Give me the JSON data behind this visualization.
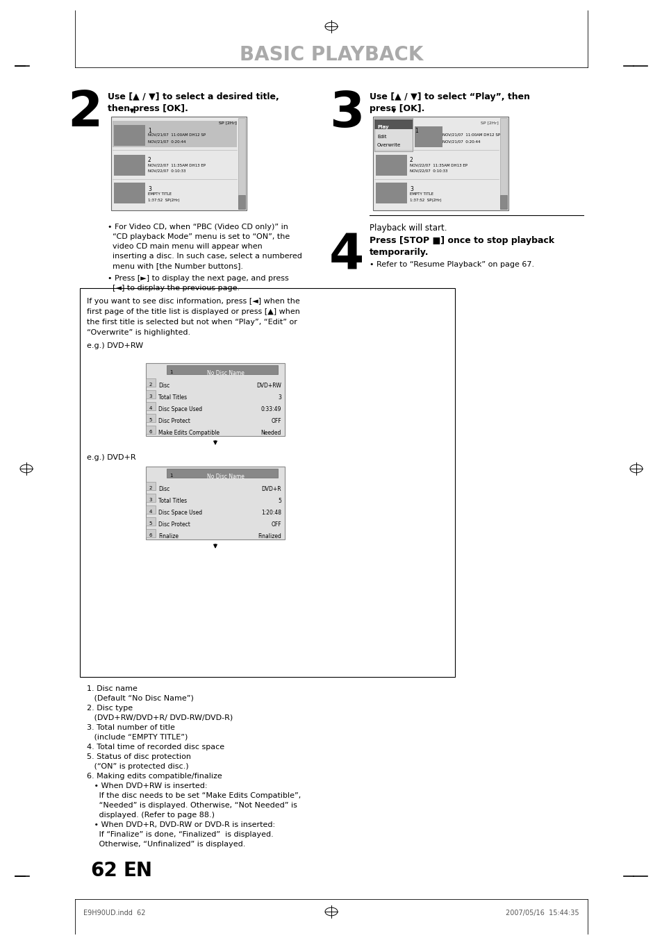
{
  "bg_color": "#ffffff",
  "title": "BASIC PLAYBACK",
  "title_color": "#aaaaaa",
  "page_number": "62",
  "page_label": "EN",
  "footer_left": "E9H90UD.indd  62",
  "footer_right": "2007/05/16  15:44:35",
  "step2_line1": "Use [▲ / ▼] to select a desired title,",
  "step2_line2": "then press [OK].",
  "step3_line1": "Use [▲ / ▼] to select “Play”, then",
  "step3_line2": "press [OK].",
  "step3_sub": "Playback will start.",
  "step4_line1": "Press [STOP ■] once to stop playback",
  "step4_line2": "temporarily.",
  "step4_sub": "• Refer to “Resume Playback” on page 67.",
  "bullet1_lines": [
    "• For Video CD, when “PBC (Video CD only)” in",
    "  “CD playback Mode” menu is set to “ON”, the",
    "  video CD main menu will appear when",
    "  inserting a disc. In such case, select a numbered",
    "  menu with [the Number buttons]."
  ],
  "bullet2_lines": [
    "• Press [►] to display the next page, and press",
    "  [◄] to display the previous page."
  ],
  "info_lines": [
    "If you want to see disc information, press [◄] when the",
    "first page of the title list is displayed or press [▲] when",
    "the first title is selected but not when “Play”, “Edit” or",
    "“Overwrite” is highlighted."
  ],
  "eg_dvdrw": "e.g.) DVD+RW",
  "eg_dvdr": "e.g.) DVD+R",
  "dvdrw_rows": [
    [
      "2",
      "Disc",
      "DVD+RW"
    ],
    [
      "3",
      "Total Titles",
      "3"
    ],
    [
      "4",
      "Disc Space Used",
      "0:33:49"
    ],
    [
      "5",
      "Disc Protect",
      "OFF"
    ],
    [
      "6",
      "Make Edits Compatible",
      "Needed"
    ]
  ],
  "dvdr_rows": [
    [
      "2",
      "Disc",
      "DVD+R"
    ],
    [
      "3",
      "Total Titles",
      "5"
    ],
    [
      "4",
      "Disc Space Used",
      "1:20:48"
    ],
    [
      "5",
      "Disc Protect",
      "OFF"
    ],
    [
      "6",
      "Finalize",
      "Finalized"
    ]
  ],
  "list_lines": [
    "1. Disc name",
    "   (Default “No Disc Name”)",
    "2. Disc type",
    "   (DVD+RW/DVD+R/ DVD-RW/DVD-R)",
    "3. Total number of title",
    "   (include “EMPTY TITLE”)",
    "4. Total time of recorded disc space",
    "5. Status of disc protection",
    "   (“ON” is protected disc.)",
    "6. Making edits compatible/finalize",
    "   • When DVD+RW is inserted:",
    "     If the disc needs to be set “Make Edits Compatible”,",
    "     “Needed” is displayed. Otherwise, “Not Needed” is",
    "     displayed. (Refer to page 88.)",
    "   • When DVD+R, DVD-RW or DVD-R is inserted:",
    "     If “Finalize” is done, “Finalized”  is displayed.",
    "     Otherwise, “Unfinalized” is displayed."
  ]
}
